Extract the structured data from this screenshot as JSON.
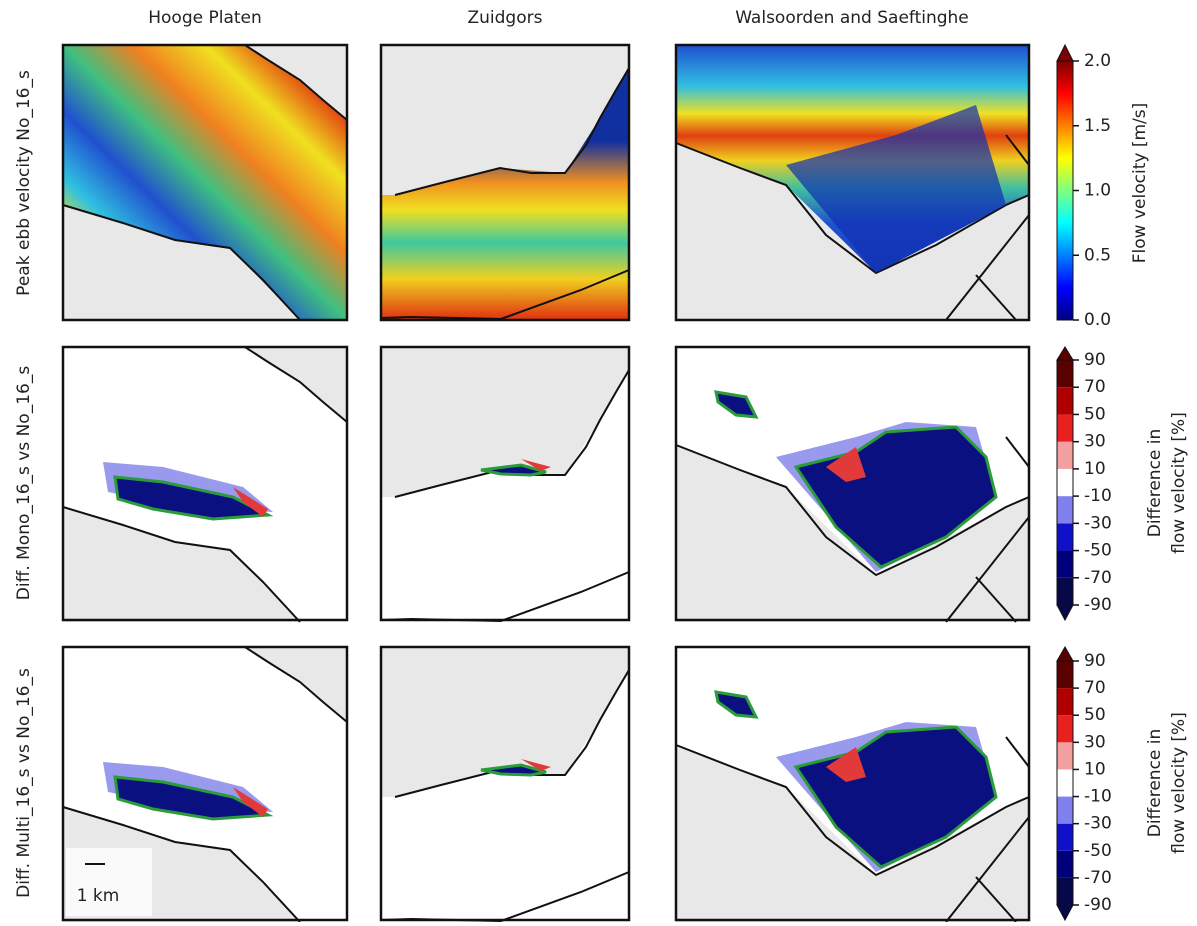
{
  "columns": [
    "Hooge Platen",
    "Zuidgors",
    "Walsoorden and Saeftinghe"
  ],
  "rows": [
    "Peak ebb velocity No_16_s",
    "Diff. Mono_16_s vs No_16_s",
    "Diff. Multi_16_s vs No_16_s"
  ],
  "velocity_colorbar": {
    "label": "Flow velocity [m/s]",
    "range": [
      0,
      2
    ],
    "ticks": [
      {
        "value": 0,
        "label": "0.0"
      },
      {
        "value": 0.5,
        "label": "0.5"
      },
      {
        "value": 1,
        "label": "1.0"
      },
      {
        "value": 1.5,
        "label": "1.5"
      },
      {
        "value": 2,
        "label": "2.0"
      }
    ]
  },
  "difference_colorbar": {
    "label": [
      "Difference in",
      "flow velocity [%]"
    ],
    "ticks": [
      -90,
      -70,
      -50,
      -30,
      -10,
      10,
      30,
      50,
      70,
      90
    ]
  },
  "scale_bar": "1 km"
}
